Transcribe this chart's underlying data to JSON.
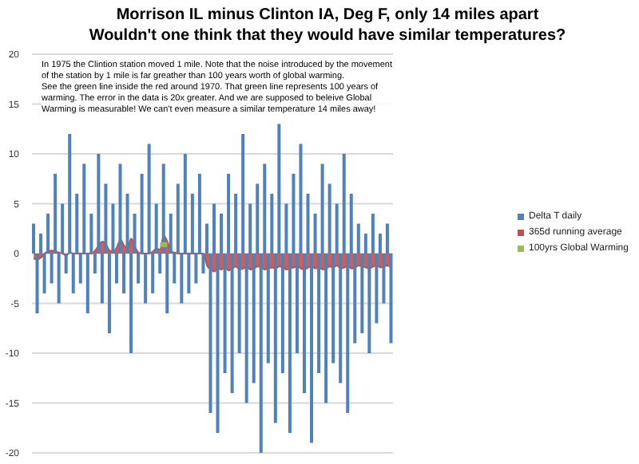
{
  "chart_data": {
    "type": "bar",
    "title": "Morrison IL minus Clinton IA, Deg F, only 14 miles apart\nWouldn't one think that they would have similar temperatures?",
    "annotations": [
      "In 1975 the Clintion station moved 1 mile. Note that the noise introduced by the movement\nof the  station by 1 mile is far greather than 100 years worth of global warming.\nSee the green line inside the red around 1970.  That green line represents 100 years of\nwarming.  The error in the data is 20x greater.  And we are supposed to beleive Global\nWarming is measurable! We can't even measure a similar temperature 14 miles away!"
    ],
    "categories": [
      null,
      null,
      null,
      null,
      null,
      null,
      null,
      null,
      null,
      null,
      null,
      null,
      null,
      null,
      null,
      null,
      null,
      null,
      null,
      null,
      null,
      null,
      null,
      null,
      null,
      null,
      null,
      null,
      null,
      null,
      null,
      null,
      null,
      null,
      null,
      null,
      null,
      null,
      null,
      null,
      null,
      null,
      null,
      null,
      null,
      null,
      null,
      null,
      null,
      null,
      null,
      null,
      null,
      null,
      null,
      null,
      null,
      null,
      null,
      null,
      null,
      null,
      null,
      null,
      null,
      null,
      null,
      null,
      null,
      null,
      null,
      null,
      null,
      null,
      null,
      null,
      null,
      null,
      null,
      null,
      null,
      null,
      null,
      null,
      null,
      null,
      null,
      null,
      null,
      null,
      null,
      null,
      null,
      null,
      null,
      null,
      null,
      null,
      null,
      null
    ],
    "series": [
      {
        "name": "Delta T daily",
        "color": "#4f81bd",
        "values": [
          3,
          -6,
          2,
          -4,
          4,
          -3,
          8,
          -5,
          5,
          -2,
          12,
          -4,
          6,
          -3,
          9,
          -6,
          4,
          -2,
          10,
          -5,
          7,
          -8,
          5,
          -3,
          9,
          -4,
          6,
          -10,
          4,
          -3,
          8,
          -5,
          11,
          -4,
          5,
          -2,
          9,
          -6,
          4,
          -3,
          7,
          -5,
          10,
          -4,
          6,
          -3,
          8,
          -2,
          3,
          -16,
          5,
          -18,
          4,
          -12,
          8,
          -14,
          6,
          -10,
          12,
          -15,
          5,
          -13,
          7,
          -20,
          9,
          -11,
          6,
          -17,
          13,
          -12,
          5,
          -18,
          8,
          -10,
          11,
          -14,
          6,
          -19,
          4,
          -12,
          9,
          -15,
          7,
          -11,
          5,
          -13,
          10,
          -16,
          6,
          -9,
          3,
          -8,
          2,
          -10,
          4,
          -7,
          2,
          -5,
          3,
          -9
        ]
      },
      {
        "name": "365d running average",
        "type": "area",
        "color": "#c0504d",
        "values": [
          -0.5,
          -0.6,
          -0.4,
          0,
          0.2,
          0.3,
          0.2,
          0.1,
          0,
          -0.2,
          0.1,
          0,
          0,
          0,
          0,
          0,
          0,
          0.3,
          0.8,
          1.2,
          0.9,
          0.3,
          0.2,
          0.6,
          1.4,
          0.8,
          0.6,
          1.5,
          0.7,
          0.1,
          0,
          0,
          0,
          0.2,
          0.5,
          0.4,
          1.8,
          1.2,
          0.2,
          0.1,
          0,
          0,
          0,
          0,
          0,
          0,
          0,
          0,
          -1.2,
          -1.6,
          -1.8,
          -1.5,
          -1.6,
          -1.4,
          -1.7,
          -1.5,
          -1.3,
          -1.6,
          -1.5,
          -1.4,
          -1.6,
          -1.5,
          -1.3,
          -1.4,
          -1.6,
          -1.5,
          -1.4,
          -1.5,
          -1.3,
          -1.4,
          -1.6,
          -1.5,
          -1.4,
          -1.3,
          -1.5,
          -1.6,
          -1.4,
          -1.3,
          -1.5,
          -1.4,
          -1.6,
          -1.5,
          -1.3,
          -1.4,
          -1.2,
          -1.5,
          -1.4,
          -1.3,
          -1.5,
          -1.4,
          -1.2,
          -1.3,
          -1.4,
          -1.5,
          -1.3,
          -1.2,
          -1.4,
          -1.3,
          -1.2,
          -1.4
        ]
      },
      {
        "name": "100yrs Global Warming",
        "type": "line",
        "color": "#9bbb59",
        "values": [
          null,
          null,
          null,
          null,
          null,
          null,
          null,
          null,
          null,
          null,
          null,
          null,
          null,
          null,
          null,
          null,
          null,
          null,
          null,
          null,
          null,
          null,
          null,
          null,
          null,
          null,
          null,
          null,
          null,
          null,
          null,
          null,
          null,
          null,
          null,
          0.9,
          0.9,
          0.9,
          null,
          null,
          null,
          null,
          null,
          null,
          null,
          null,
          null,
          null,
          null,
          null,
          null,
          null,
          null,
          null,
          null,
          null,
          null,
          null,
          null,
          null,
          null,
          null,
          null,
          null,
          null,
          null,
          null,
          null,
          null,
          null,
          null,
          null,
          null,
          null,
          null,
          null,
          null,
          null,
          null,
          null,
          null,
          null,
          null,
          null,
          null,
          null,
          null,
          null,
          null,
          null,
          null,
          null,
          null,
          null,
          null,
          null,
          null,
          null,
          null,
          null
        ]
      }
    ],
    "ylim": [
      -20,
      20
    ],
    "yticks": [
      -20,
      -15,
      -10,
      -5,
      0,
      5,
      10,
      15,
      20
    ],
    "grid": "y",
    "legend": "right",
    "tick_labels": "y"
  }
}
